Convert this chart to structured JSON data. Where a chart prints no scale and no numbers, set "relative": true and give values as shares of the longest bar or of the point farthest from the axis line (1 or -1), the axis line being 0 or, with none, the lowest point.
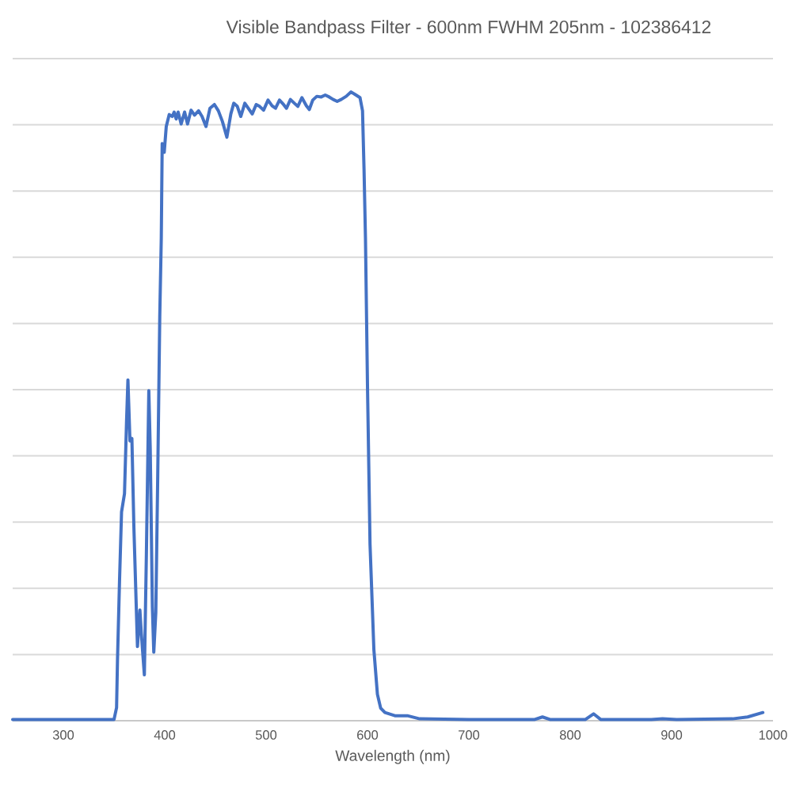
{
  "chart_data": {
    "type": "line",
    "title": "Visible Bandpass Filter - 600nm FWHM 205nm - 102386412",
    "xlabel": "Wavelength (nm)",
    "x": [
      250,
      350,
      352.5,
      353.4,
      355.4,
      357.4,
      360.3,
      362.3,
      363.7,
      365.7,
      367.6,
      369.6,
      373.1,
      375.5,
      376.9,
      379.9,
      381.9,
      384.3,
      385.7,
      387.8,
      389.2,
      391.2,
      393.1,
      395.1,
      396.6,
      397.5,
      399.5,
      401.5,
      404.4,
      407.4,
      409.3,
      411.3,
      413.2,
      416.2,
      419.6,
      422.5,
      426,
      429.4,
      433.4,
      436.8,
      440.7,
      444.6,
      449,
      452.9,
      456.9,
      461.3,
      465.2,
      468.1,
      471.6,
      475,
      479,
      482.4,
      486.3,
      490.2,
      493.6,
      497.5,
      501.9,
      505.9,
      509.3,
      513.2,
      517.2,
      520.1,
      524,
      527.9,
      531.3,
      535.3,
      539.7,
      542.6,
      546,
      550,
      554.4,
      558.3,
      562.2,
      566.2,
      570.1,
      574,
      579,
      583.8,
      588.7,
      592.6,
      595.1,
      596.6,
      598,
      600,
      602.5,
      606.3,
      609.8,
      613,
      617.2,
      627,
      639.3,
      651.5,
      700,
      765,
      772.6,
      780,
      815,
      823,
      830,
      880,
      891,
      905,
      960,
      975,
      990
    ],
    "values": [
      0.002,
      0.002,
      0.021,
      0.096,
      0.222,
      0.332,
      0.361,
      0.474,
      0.542,
      0.445,
      0.449,
      0.306,
      0.118,
      0.176,
      0.139,
      0.073,
      0.264,
      0.525,
      0.432,
      0.181,
      0.109,
      0.172,
      0.39,
      0.642,
      0.768,
      0.918,
      0.904,
      0.945,
      0.964,
      0.961,
      0.968,
      0.957,
      0.968,
      0.949,
      0.968,
      0.949,
      0.971,
      0.963,
      0.97,
      0.961,
      0.945,
      0.974,
      0.98,
      0.97,
      0.953,
      0.928,
      0.965,
      0.982,
      0.977,
      0.961,
      0.982,
      0.974,
      0.965,
      0.98,
      0.977,
      0.971,
      0.987,
      0.978,
      0.974,
      0.987,
      0.98,
      0.974,
      0.988,
      0.982,
      0.977,
      0.991,
      0.978,
      0.972,
      0.987,
      0.993,
      0.992,
      0.995,
      0.992,
      0.988,
      0.985,
      0.988,
      0.993,
      1.0,
      0.995,
      0.991,
      0.97,
      0.877,
      0.768,
      0.533,
      0.281,
      0.113,
      0.042,
      0.02,
      0.013,
      0.008,
      0.008,
      0.003,
      0.002,
      0.002,
      0.006,
      0.002,
      0.002,
      0.011,
      0.002,
      0.002,
      0.003,
      0.002,
      0.003,
      0.006,
      0.013
    ],
    "color": "#4472c4",
    "relative": true,
    "xlim": [
      250,
      1000
    ],
    "xticks": [
      300,
      400,
      500,
      600,
      700,
      800,
      900,
      1000
    ],
    "grid": "y"
  }
}
